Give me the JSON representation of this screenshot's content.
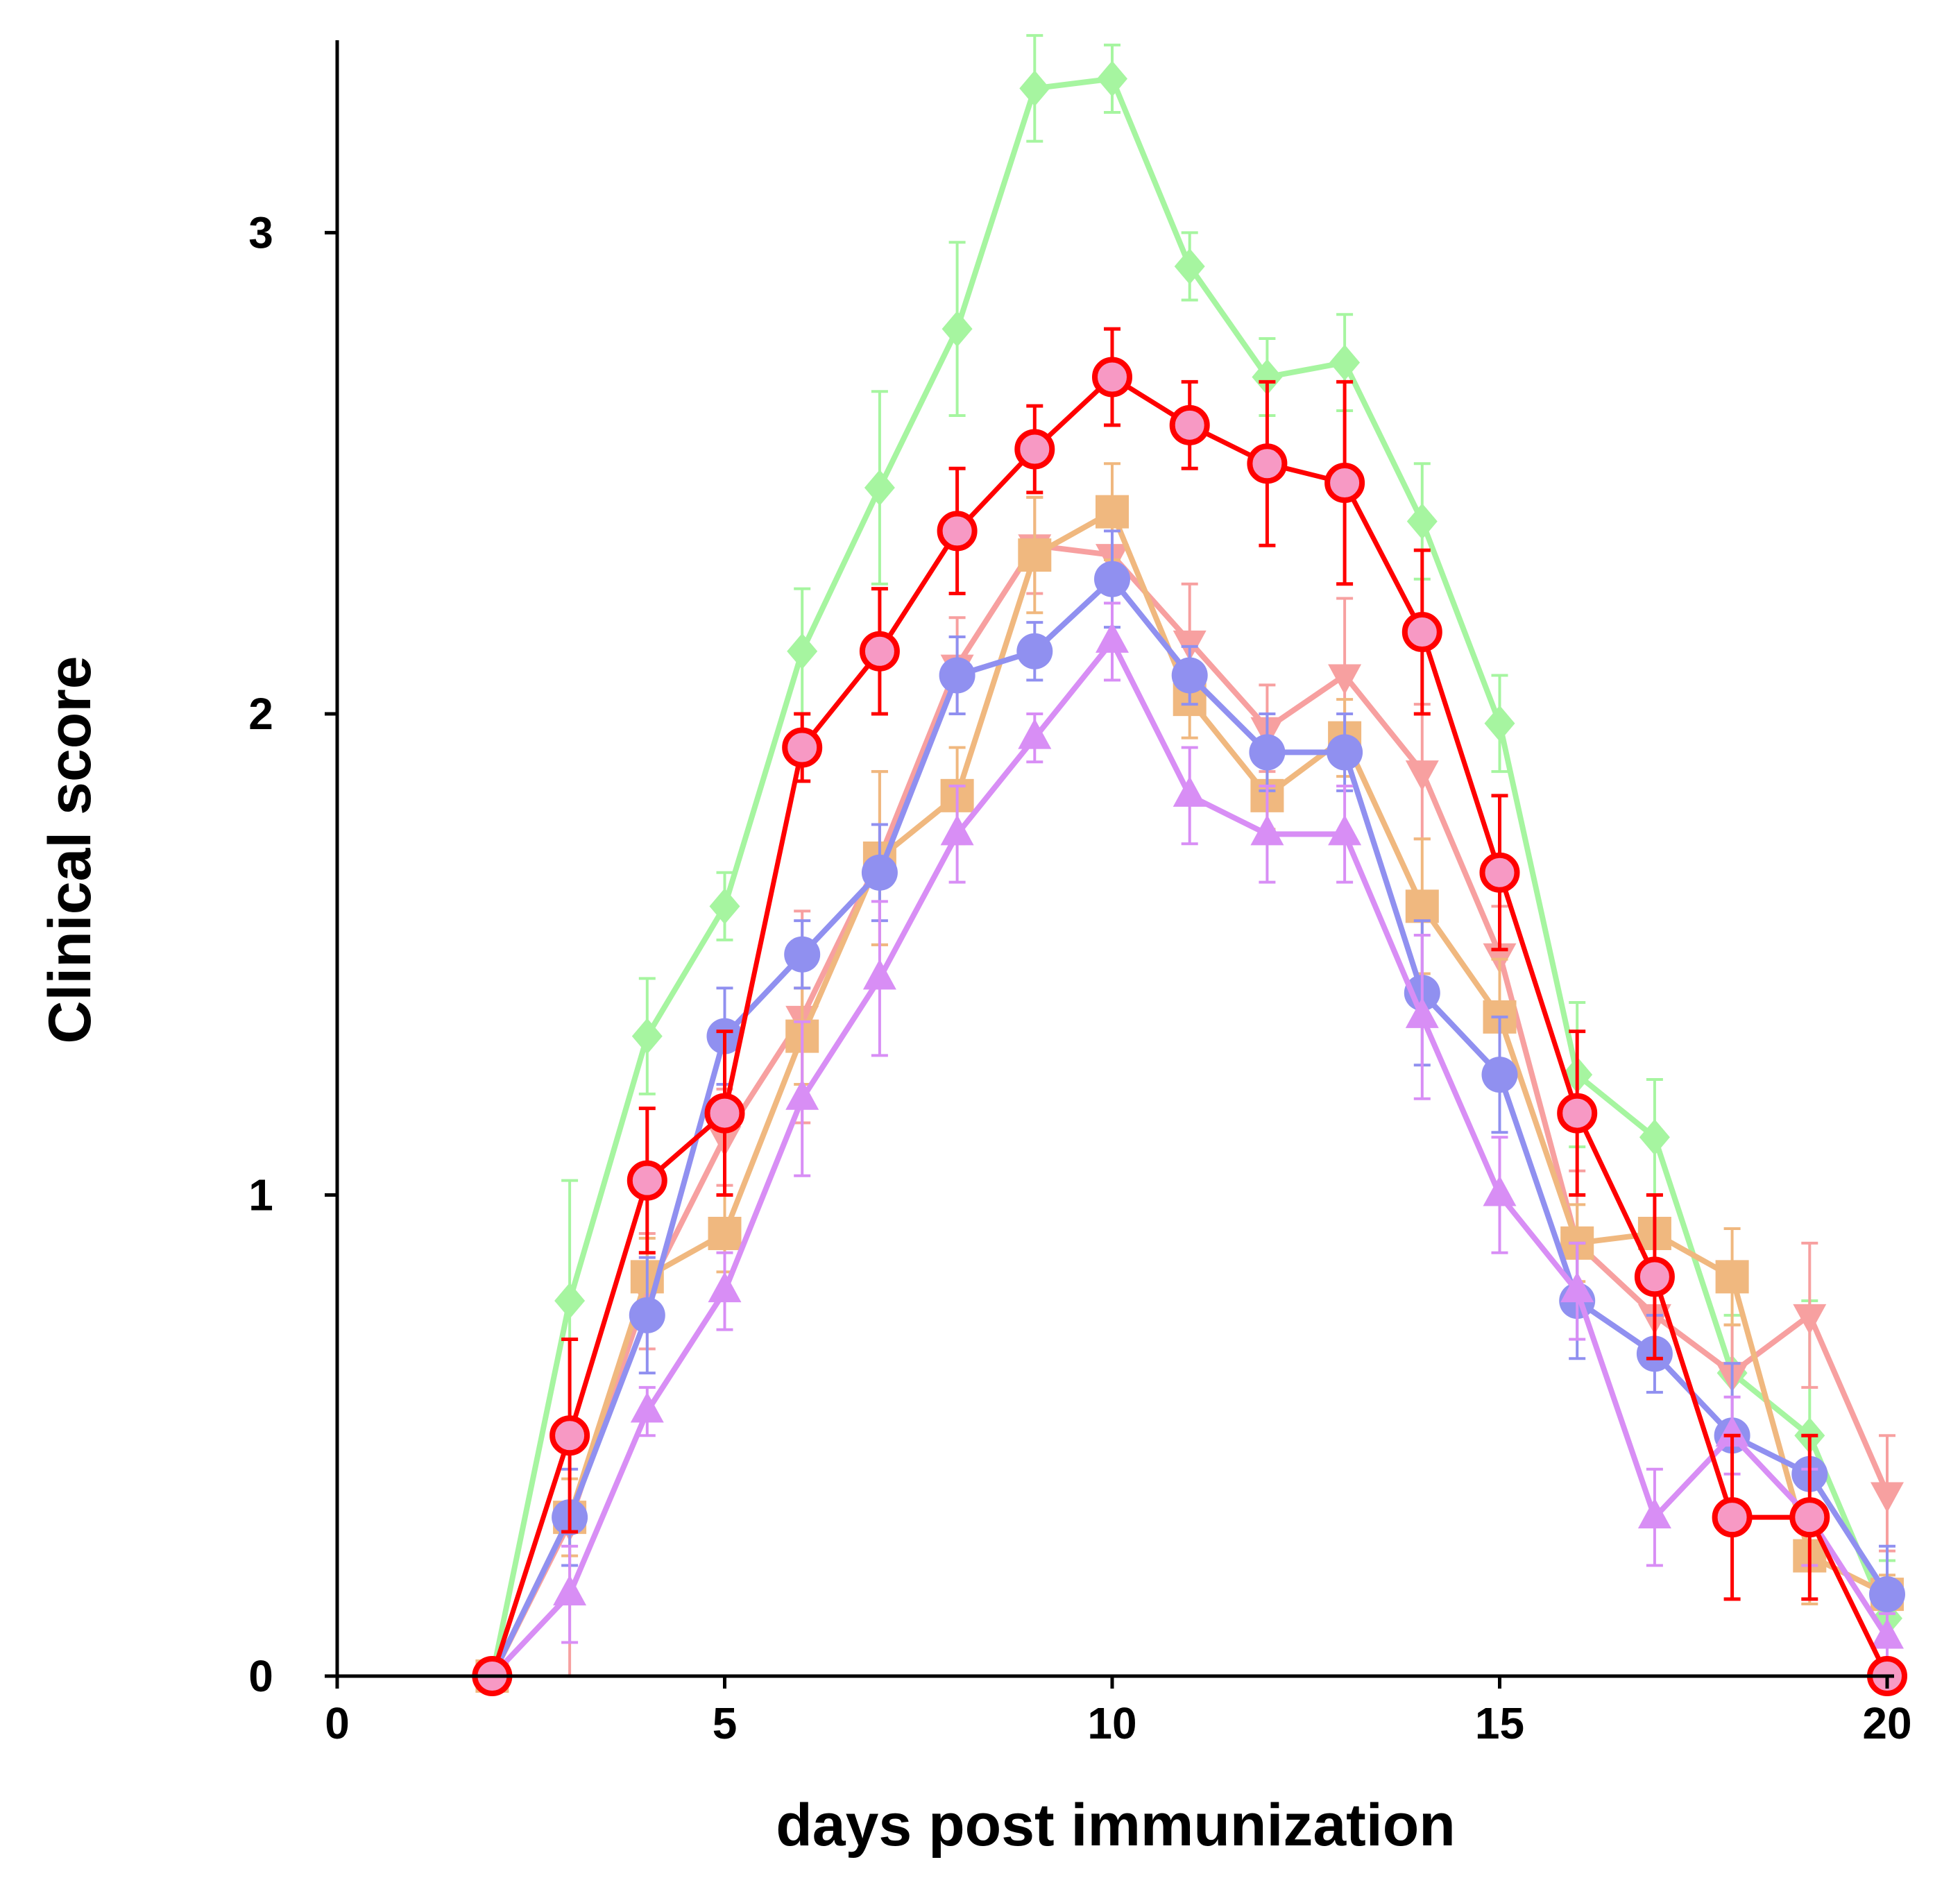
{
  "chart_data": {
    "type": "line",
    "title": "",
    "xlabel": "days post immunization",
    "ylabel": "Clinical score",
    "xlim": [
      0,
      20
    ],
    "ylim": [
      0,
      3.4
    ],
    "xticks": [
      0,
      5,
      10,
      15,
      20
    ],
    "xtick_labels": [
      "0",
      "5",
      "10",
      "15",
      "20"
    ],
    "yticks": [
      0,
      1,
      2,
      3
    ],
    "ytick_labels": [
      "0",
      "1",
      "2",
      "3"
    ],
    "grid": false,
    "legend": "none",
    "x": [
      2,
      3,
      4,
      5,
      6,
      7,
      8,
      9,
      10,
      11,
      12,
      13,
      14,
      15,
      16,
      17,
      18,
      19,
      20
    ],
    "series": [
      {
        "name": "green-diamond",
        "color": "#a6f5a0",
        "marker": "diamond",
        "values": [
          0,
          0.78,
          1.33,
          1.6,
          2.13,
          2.47,
          2.8,
          3.3,
          3.32,
          2.93,
          2.7,
          2.73,
          2.4,
          1.98,
          1.25,
          1.12,
          0.63,
          0.5,
          0.12
        ],
        "errors": [
          0,
          0.25,
          0.12,
          0.07,
          0.13,
          0.2,
          0.18,
          0.11,
          0.07,
          0.07,
          0.08,
          0.1,
          0.12,
          0.1,
          0.15,
          0.12,
          0.12,
          0.28,
          0.12
        ]
      },
      {
        "name": "salmon-down-triangle",
        "color": "#f7a0a0",
        "marker": "triangle-down",
        "values": [
          0,
          0.32,
          0.8,
          1.12,
          1.37,
          1.7,
          2.1,
          2.35,
          2.33,
          2.15,
          1.97,
          2.08,
          1.88,
          1.5,
          0.9,
          0.75,
          0.63,
          0.75,
          0.38
        ],
        "errors": [
          0,
          0.38,
          0.12,
          0.1,
          0.22,
          0.18,
          0.1,
          0.1,
          0.08,
          0.12,
          0.09,
          0.16,
          0.14,
          0.1,
          0.15,
          0.1,
          0.1,
          0.15,
          0.12
        ]
      },
      {
        "name": "orange-square",
        "color": "#f0b87f",
        "marker": "square",
        "values": [
          0,
          0.33,
          0.83,
          0.92,
          1.33,
          1.7,
          1.83,
          2.33,
          2.42,
          2.03,
          1.83,
          1.95,
          1.6,
          1.37,
          0.9,
          0.92,
          0.83,
          0.25,
          0.17
        ],
        "errors": [
          0,
          0.08,
          0.08,
          0.08,
          0.1,
          0.18,
          0.1,
          0.12,
          0.1,
          0.08,
          0.07,
          0.08,
          0.14,
          0.12,
          0.08,
          0.08,
          0.1,
          0.1,
          0.04
        ]
      },
      {
        "name": "blue-circle",
        "color": "#9090f0",
        "marker": "circle",
        "values": [
          0,
          0.33,
          0.75,
          1.33,
          1.5,
          1.67,
          2.08,
          2.13,
          2.28,
          2.08,
          1.92,
          1.92,
          1.42,
          1.25,
          0.78,
          0.67,
          0.5,
          0.42,
          0.17
        ],
        "errors": [
          0,
          0.1,
          0.12,
          0.1,
          0.07,
          0.1,
          0.08,
          0.06,
          0.1,
          0.06,
          0.08,
          0.08,
          0.15,
          0.12,
          0.12,
          0.08,
          0.15,
          0.08,
          0.1
        ]
      },
      {
        "name": "violet-triangle",
        "color": "#d88ef5",
        "marker": "triangle-up",
        "values": [
          0,
          0.17,
          0.55,
          0.8,
          1.2,
          1.45,
          1.75,
          1.95,
          2.15,
          1.83,
          1.75,
          1.75,
          1.37,
          1.0,
          0.8,
          0.33,
          0.5,
          0.33,
          0.08
        ],
        "errors": [
          0,
          0.1,
          0.05,
          0.08,
          0.16,
          0.16,
          0.1,
          0.05,
          0.08,
          0.1,
          0.1,
          0.1,
          0.17,
          0.12,
          0.1,
          0.1,
          0.08,
          0.1,
          0.05
        ]
      },
      {
        "name": "red-pink-circle",
        "color": "#ff0000",
        "fill": "#f799c4",
        "marker": "circle-outline",
        "values": [
          0,
          0.5,
          1.03,
          1.17,
          1.93,
          2.13,
          2.38,
          2.55,
          2.7,
          2.6,
          2.52,
          2.48,
          2.17,
          1.67,
          1.17,
          0.83,
          0.33,
          0.33,
          0
        ],
        "errors": [
          0,
          0.2,
          0.15,
          0.17,
          0.07,
          0.13,
          0.13,
          0.09,
          0.1,
          0.09,
          0.17,
          0.21,
          0.17,
          0.16,
          0.17,
          0.17,
          0.17,
          0.17,
          0
        ]
      }
    ]
  }
}
